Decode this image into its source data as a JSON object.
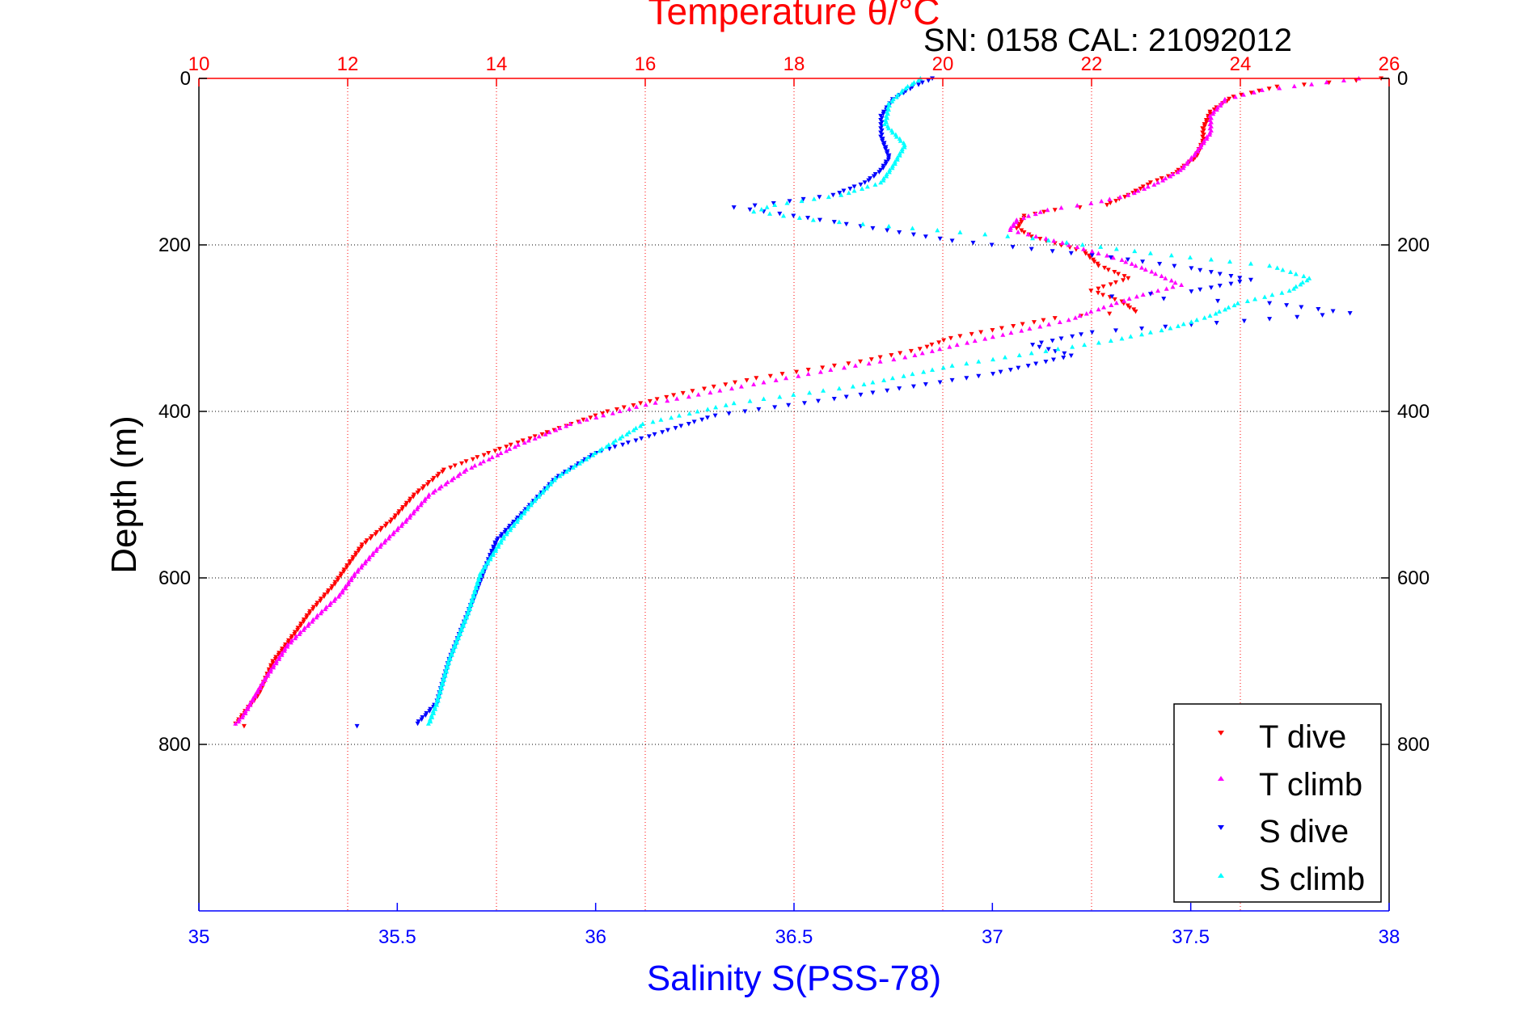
{
  "chart_data": {
    "type": "scatter",
    "title": "Temperature θ/°C",
    "subtitle": "SN: 0158  CAL: 21092012",
    "ylabel": "Depth (m)",
    "xlabel_bottom": "Salinity S(PSS-78)",
    "y_axis": {
      "range": [
        0,
        1000
      ],
      "reversed": true,
      "ticks": [
        0,
        200,
        400,
        600,
        800
      ],
      "grid": true
    },
    "x_axis_top": {
      "label": "Temperature θ/°C",
      "range": [
        10,
        26
      ],
      "ticks": [
        10,
        12,
        14,
        16,
        18,
        20,
        22,
        24,
        26
      ],
      "grid": true,
      "color": "#ff0000"
    },
    "x_axis_bottom": {
      "label": "Salinity S(PSS-78)",
      "range": [
        35,
        38
      ],
      "ticks": [
        "35",
        "35.5",
        "36",
        "36.5",
        "37",
        "37.5",
        "38"
      ],
      "grid": false,
      "color": "#0000ff"
    },
    "legend": {
      "placement": "bottom-right"
    },
    "colors": {
      "t_dive": "#ff0000",
      "t_climb": "#ff00ff",
      "s_dive": "#0000ff",
      "s_climb": "#00ffff"
    },
    "series": [
      {
        "name": "T dive",
        "axis": "top",
        "marker": "triangle-down",
        "color": "#ff0000",
        "points": [
          [
            25.9,
            0
          ],
          [
            24.5,
            10
          ],
          [
            23.9,
            22
          ],
          [
            23.6,
            40
          ],
          [
            23.5,
            60
          ],
          [
            23.5,
            75
          ],
          [
            23.4,
            95
          ],
          [
            23.1,
            115
          ],
          [
            22.8,
            125
          ],
          [
            22.5,
            140
          ],
          [
            22.2,
            152
          ],
          [
            21.5,
            158
          ],
          [
            21.1,
            165
          ],
          [
            21.0,
            180
          ],
          [
            21.2,
            190
          ],
          [
            21.5,
            198
          ],
          [
            21.9,
            208
          ],
          [
            22.1,
            225
          ],
          [
            22.5,
            240
          ],
          [
            22.0,
            255
          ],
          [
            22.4,
            268
          ],
          [
            22.6,
            280
          ],
          [
            21.5,
            288
          ],
          [
            20.8,
            300
          ],
          [
            20.1,
            312
          ],
          [
            19.7,
            325
          ],
          [
            18.9,
            340
          ],
          [
            17.5,
            360
          ],
          [
            16.5,
            378
          ],
          [
            15.5,
            400
          ],
          [
            14.2,
            440
          ],
          [
            13.3,
            470
          ],
          [
            12.9,
            500
          ],
          [
            12.6,
            530
          ],
          [
            12.2,
            560
          ],
          [
            12.0,
            585
          ],
          [
            11.8,
            610
          ],
          [
            11.5,
            640
          ],
          [
            11.3,
            665
          ],
          [
            11.0,
            700
          ],
          [
            10.8,
            740
          ],
          [
            10.5,
            775
          ],
          [
            10.6,
            778
          ]
        ]
      },
      {
        "name": "T climb",
        "axis": "top",
        "marker": "triangle-up",
        "color": "#ff00ff",
        "points": [
          [
            25.6,
            0
          ],
          [
            24.3,
            14
          ],
          [
            23.8,
            25
          ],
          [
            23.6,
            45
          ],
          [
            23.6,
            65
          ],
          [
            23.4,
            90
          ],
          [
            23.2,
            110
          ],
          [
            22.9,
            125
          ],
          [
            22.5,
            140
          ],
          [
            22.0,
            150
          ],
          [
            21.4,
            158
          ],
          [
            21.0,
            170
          ],
          [
            20.9,
            182
          ],
          [
            21.5,
            195
          ],
          [
            21.9,
            205
          ],
          [
            22.4,
            218
          ],
          [
            22.8,
            232
          ],
          [
            23.2,
            248
          ],
          [
            22.6,
            262
          ],
          [
            22.0,
            280
          ],
          [
            21.7,
            290
          ],
          [
            21.3,
            298
          ],
          [
            20.8,
            308
          ],
          [
            20.2,
            320
          ],
          [
            19.5,
            335
          ],
          [
            18.5,
            350
          ],
          [
            17.3,
            370
          ],
          [
            16.0,
            392
          ],
          [
            15.0,
            415
          ],
          [
            14.3,
            440
          ],
          [
            13.6,
            470
          ],
          [
            13.1,
            500
          ],
          [
            12.8,
            530
          ],
          [
            12.4,
            565
          ],
          [
            12.1,
            595
          ],
          [
            11.9,
            620
          ],
          [
            11.6,
            645
          ],
          [
            11.2,
            680
          ],
          [
            10.9,
            720
          ],
          [
            10.6,
            765
          ],
          [
            10.5,
            775
          ]
        ]
      },
      {
        "name": "S dive",
        "axis": "bottom",
        "marker": "triangle-down",
        "color": "#0000ff",
        "points": [
          [
            36.85,
            0
          ],
          [
            36.8,
            10
          ],
          [
            36.75,
            25
          ],
          [
            36.72,
            45
          ],
          [
            36.72,
            70
          ],
          [
            36.74,
            95
          ],
          [
            36.72,
            110
          ],
          [
            36.68,
            125
          ],
          [
            36.6,
            140
          ],
          [
            36.45,
            150
          ],
          [
            36.35,
            155
          ],
          [
            36.5,
            165
          ],
          [
            36.7,
            180
          ],
          [
            36.9,
            195
          ],
          [
            37.1,
            205
          ],
          [
            37.3,
            215
          ],
          [
            37.5,
            228
          ],
          [
            37.65,
            242
          ],
          [
            37.5,
            256
          ],
          [
            37.3,
            262
          ],
          [
            37.7,
            270
          ],
          [
            37.9,
            282
          ],
          [
            37.5,
            296
          ],
          [
            37.25,
            305
          ],
          [
            37.1,
            320
          ],
          [
            37.2,
            333
          ],
          [
            37.0,
            355
          ],
          [
            36.6,
            385
          ],
          [
            36.3,
            405
          ],
          [
            36.0,
            450
          ],
          [
            35.9,
            480
          ],
          [
            35.82,
            520
          ],
          [
            35.75,
            555
          ],
          [
            35.72,
            590
          ],
          [
            35.68,
            640
          ],
          [
            35.63,
            700
          ],
          [
            35.6,
            750
          ],
          [
            35.55,
            775
          ],
          [
            35.4,
            778
          ]
        ]
      },
      {
        "name": "S climb",
        "axis": "bottom",
        "marker": "triangle-up",
        "color": "#00ffff",
        "points": [
          [
            36.82,
            0
          ],
          [
            36.78,
            12
          ],
          [
            36.74,
            30
          ],
          [
            36.73,
            55
          ],
          [
            36.78,
            80
          ],
          [
            36.75,
            105
          ],
          [
            36.72,
            125
          ],
          [
            36.62,
            140
          ],
          [
            36.45,
            152
          ],
          [
            36.4,
            160
          ],
          [
            36.55,
            170
          ],
          [
            36.8,
            180
          ],
          [
            37.1,
            192
          ],
          [
            37.4,
            210
          ],
          [
            37.7,
            225
          ],
          [
            37.8,
            240
          ],
          [
            37.75,
            255
          ],
          [
            37.62,
            270
          ],
          [
            37.55,
            285
          ],
          [
            37.45,
            300
          ],
          [
            37.3,
            315
          ],
          [
            37.1,
            330
          ],
          [
            36.9,
            345
          ],
          [
            36.65,
            370
          ],
          [
            36.35,
            390
          ],
          [
            36.12,
            415
          ],
          [
            36.0,
            450
          ],
          [
            35.9,
            480
          ],
          [
            35.84,
            510
          ],
          [
            35.77,
            550
          ],
          [
            35.71,
            595
          ],
          [
            35.68,
            640
          ],
          [
            35.63,
            700
          ],
          [
            35.6,
            750
          ],
          [
            35.58,
            775
          ]
        ]
      }
    ]
  }
}
